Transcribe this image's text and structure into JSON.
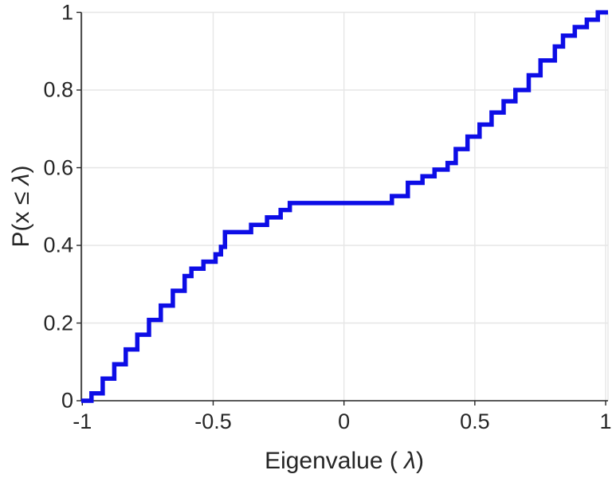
{
  "labels": {
    "xlabel_pre": "Eigenvalue ( ",
    "xlabel_lambda": "λ",
    "xlabel_post": ")",
    "ylabel_pre": "P(x ≤ ",
    "ylabel_lambda": "λ",
    "ylabel_post": ")"
  },
  "colors": {
    "curve": "#0d0de6",
    "axis": "#262626",
    "grid": "#e6e6e6",
    "tick_text": "#262626",
    "background": "#ffffff"
  },
  "chart_data": {
    "type": "line",
    "subtype": "empirical-cdf-staircase",
    "title": "",
    "xlabel": "Eigenvalue ( λ)",
    "ylabel": "P(x ≤ λ)",
    "xlim": [
      -1.004,
      1.009
    ],
    "ylim": [
      0,
      1
    ],
    "grid": true,
    "legend": null,
    "xticks": {
      "values": [
        -1,
        -0.5,
        0,
        0.5,
        1
      ],
      "labels": [
        "-1",
        "-0.5",
        "0",
        "0.5",
        "1"
      ]
    },
    "yticks": {
      "values": [
        0,
        0.2,
        0.4,
        0.6,
        0.8,
        1
      ],
      "labels": [
        "0",
        "0.2",
        "0.4",
        "0.6",
        "0.8",
        "1"
      ]
    },
    "line_width": 5.5,
    "start": {
      "x": -1.004,
      "y": 0
    },
    "end_x": 1.009,
    "steps": [
      [
        -0.965,
        0.019
      ],
      [
        -0.922,
        0.057
      ],
      [
        -0.878,
        0.094
      ],
      [
        -0.834,
        0.132
      ],
      [
        -0.79,
        0.17
      ],
      [
        -0.745,
        0.208
      ],
      [
        -0.7,
        0.245
      ],
      [
        -0.654,
        0.283
      ],
      [
        -0.609,
        0.321
      ],
      [
        -0.583,
        0.34
      ],
      [
        -0.537,
        0.358
      ],
      [
        -0.491,
        0.377
      ],
      [
        -0.47,
        0.396
      ],
      [
        -0.455,
        0.434
      ],
      [
        -0.355,
        0.453
      ],
      [
        -0.294,
        0.472
      ],
      [
        -0.242,
        0.491
      ],
      [
        -0.207,
        0.509
      ],
      [
        0.183,
        0.527
      ],
      [
        0.244,
        0.561
      ],
      [
        0.3,
        0.578
      ],
      [
        0.346,
        0.595
      ],
      [
        0.396,
        0.612
      ],
      [
        0.427,
        0.648
      ],
      [
        0.472,
        0.68
      ],
      [
        0.518,
        0.711
      ],
      [
        0.564,
        0.742
      ],
      [
        0.61,
        0.771
      ],
      [
        0.655,
        0.8
      ],
      [
        0.706,
        0.838
      ],
      [
        0.751,
        0.876
      ],
      [
        0.806,
        0.912
      ],
      [
        0.837,
        0.94
      ],
      [
        0.882,
        0.962
      ],
      [
        0.928,
        0.981
      ],
      [
        0.97,
        1.0
      ]
    ]
  }
}
